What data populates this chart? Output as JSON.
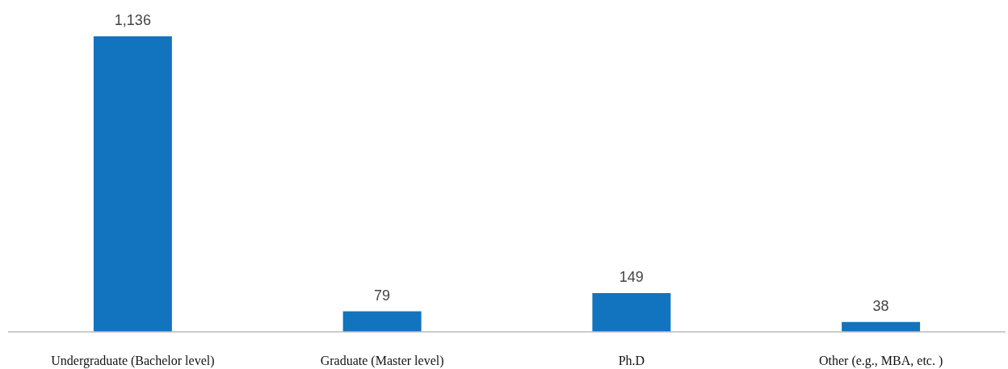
{
  "chart_data": {
    "type": "bar",
    "categories": [
      "Undergraduate (Bachelor level)",
      "Graduate (Master level)",
      "Ph.D",
      "Other (e.g., MBA, etc. )"
    ],
    "values": [
      1136,
      79,
      149,
      38
    ],
    "value_labels": [
      "1,136",
      "79",
      "149",
      "38"
    ],
    "color": "#1273be"
  }
}
